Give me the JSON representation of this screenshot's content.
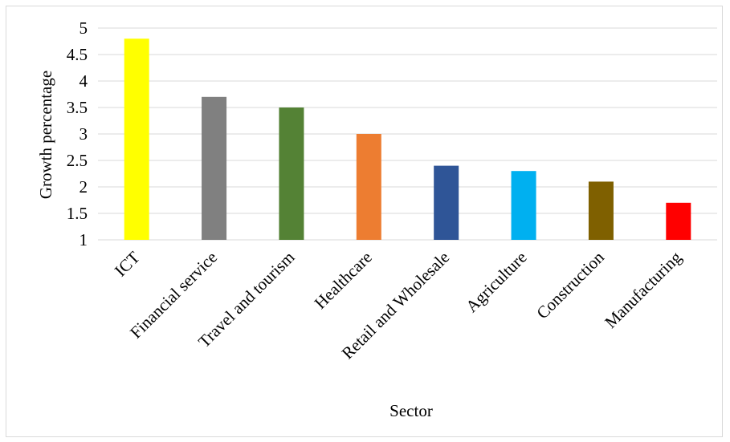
{
  "chart_data": {
    "type": "bar",
    "title": "",
    "xlabel": "Sector",
    "ylabel": "Growth percentage",
    "ylim": [
      1,
      5
    ],
    "yticks": [
      "1",
      "1.5",
      "2",
      "2.5",
      "3",
      "3.5",
      "4",
      "4.5",
      "5"
    ],
    "grid": true,
    "legend": "none",
    "categories": [
      "ICT",
      "Financial service",
      "Travel and tourism",
      "Healthcare",
      "Retail and Wholesale",
      "Agriculture",
      "Construction",
      "Manufacturing"
    ],
    "values": [
      4.8,
      3.7,
      3.5,
      3.0,
      2.4,
      2.3,
      2.1,
      1.7
    ],
    "colors": [
      "#ffff00",
      "#808080",
      "#548235",
      "#ed7d31",
      "#2f5597",
      "#00b0f0",
      "#7f6000",
      "#ff0000"
    ]
  }
}
